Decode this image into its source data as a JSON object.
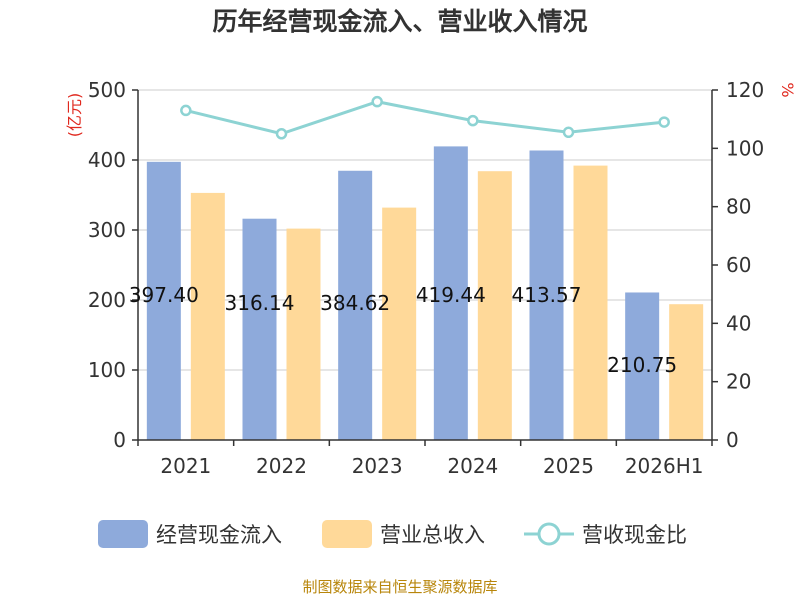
{
  "chart_data": {
    "type": "bar",
    "title": "历年经营现金流入、营业收入情况",
    "categories": [
      "2021",
      "2022",
      "2023",
      "2024",
      "2025",
      "2026H1"
    ],
    "series": [
      {
        "name": "经营现金流入",
        "type": "bar",
        "axis": "left",
        "color": "#8eaadb",
        "values": [
          397.4,
          316.14,
          384.62,
          419.44,
          413.57,
          210.75
        ],
        "labels": [
          "397.40",
          "316.14",
          "384.62",
          "419.44",
          "413.57",
          "210.75"
        ]
      },
      {
        "name": "营业总收入",
        "type": "bar",
        "axis": "left",
        "color": "#ffd999",
        "values": [
          353,
          302,
          332,
          384,
          392,
          194
        ]
      },
      {
        "name": "营收现金比",
        "type": "line",
        "axis": "right",
        "color": "#8dd3d3",
        "values": [
          113,
          105,
          116,
          109.5,
          105.5,
          109
        ]
      }
    ],
    "ylim": [
      0,
      500
    ],
    "y_ticks": [
      "0",
      "100",
      "200",
      "300",
      "400",
      "500"
    ],
    "y_unit": "(亿元)",
    "y2lim": [
      0,
      120
    ],
    "y2_ticks": [
      "0",
      "20",
      "40",
      "60",
      "80",
      "100",
      "120"
    ],
    "y2_unit": "%",
    "grid": true,
    "legend_position": "bottom"
  },
  "source_note": "制图数据来自恒生聚源数据库"
}
